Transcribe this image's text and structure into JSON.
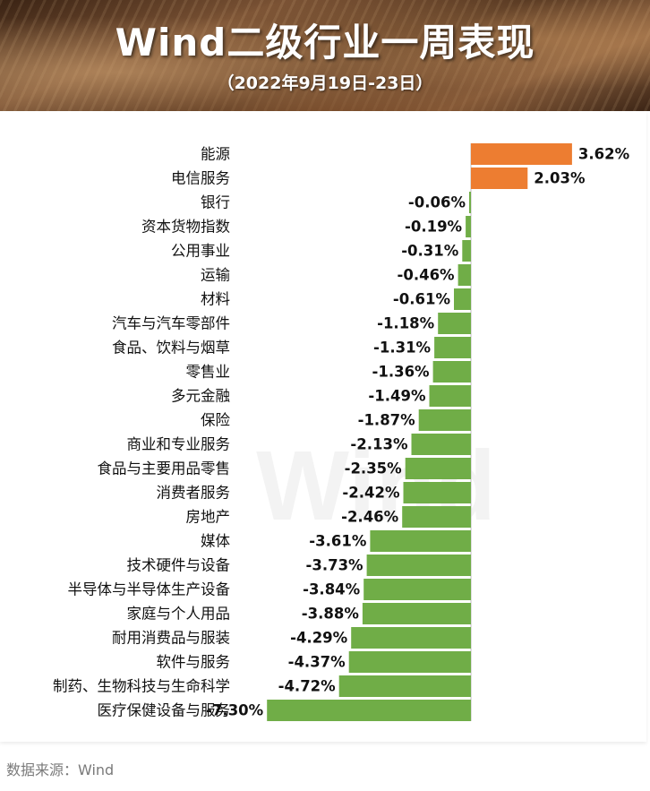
{
  "header": {
    "title": "Wind二级行业一周表现",
    "subtitle": "（2022年9月19日-23日）"
  },
  "watermark": "Wind",
  "source": "数据来源：Wind",
  "colors": {
    "positive": "#ed7d31",
    "negative": "#70ad47"
  },
  "chart_data": {
    "type": "bar",
    "orientation": "horizontal",
    "title": "Wind二级行业一周表现",
    "subtitle": "（2022年9月19日-23日）",
    "categories": [
      "能源",
      "电信服务",
      "银行",
      "资本货物指数",
      "公用事业",
      "运输",
      "材料",
      "汽车与汽车零部件",
      "食品、饮料与烟草",
      "零售业",
      "多元金融",
      "保险",
      "商业和专业服务",
      "食品与主要用品零售",
      "消费者服务",
      "房地产",
      "媒体",
      "技术硬件与设备",
      "半导体与半导体生产设备",
      "家庭与个人用品",
      "耐用消费品与服装",
      "软件与服务",
      "制药、生物科技与生命科学",
      "医疗保健设备与服务"
    ],
    "values": [
      3.62,
      2.03,
      -0.06,
      -0.19,
      -0.31,
      -0.46,
      -0.61,
      -1.18,
      -1.31,
      -1.36,
      -1.49,
      -1.87,
      -2.13,
      -2.35,
      -2.42,
      -2.46,
      -3.61,
      -3.73,
      -3.84,
      -3.88,
      -4.29,
      -4.37,
      -4.72,
      -7.3
    ],
    "value_labels": [
      "3.62%",
      "2.03%",
      "-0.06%",
      "-0.19%",
      "-0.31%",
      "-0.46%",
      "-0.61%",
      "-1.18%",
      "-1.31%",
      "-1.36%",
      "-1.49%",
      "-1.87%",
      "-2.13%",
      "-2.35%",
      "-2.42%",
      "-2.46%",
      "-3.61%",
      "-3.73%",
      "-3.84%",
      "-3.88%",
      "-4.29%",
      "-4.37%",
      "-4.72%",
      "-7.30%"
    ],
    "unit": "%",
    "xlim": [
      -7.3,
      3.62
    ],
    "grid": false,
    "legend": "none"
  }
}
